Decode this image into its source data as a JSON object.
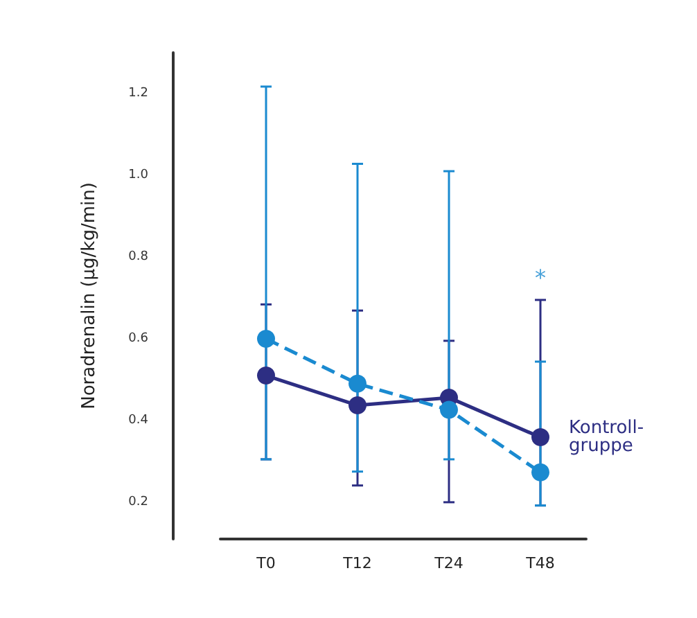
{
  "chart_data": {
    "type": "line",
    "ylabel": "Noradrenalin (µg/kg/min)",
    "categories": [
      "T0",
      "T12",
      "T24",
      "T48"
    ],
    "series": [
      {
        "name": "Kontroll-\ngruppe",
        "color": "#2d2e83",
        "line_style": "solid",
        "values": [
          0.51,
          0.437,
          0.456,
          0.359
        ],
        "errors": [
          [
            0.305,
            0.684
          ],
          [
            0.241,
            0.669
          ],
          [
            0.2,
            0.595
          ],
          [
            0.192,
            0.695
          ]
        ]
      },
      {
        "color": "#1a8ad0",
        "line_style": "dashed",
        "values": [
          0.6,
          0.49,
          0.426,
          0.273
        ],
        "errors": [
          [
            0.305,
            1.217
          ],
          [
            0.275,
            1.028
          ],
          [
            0.305,
            1.01
          ],
          [
            0.192,
            0.544
          ]
        ]
      }
    ],
    "annotations": [
      "*"
    ],
    "ylim": [
      0.11,
      1.3
    ],
    "yticks": [
      {
        "value": 0.2,
        "label": "0.2"
      },
      {
        "value": 0.4,
        "label": "0.4"
      },
      {
        "value": 0.6,
        "label": "0.6"
      },
      {
        "value": 0.8,
        "label": "0.8"
      },
      {
        "value": 1,
        "label": "1.0"
      },
      {
        "value": 1.2,
        "label": "1.2"
      }
    ],
    "marker": "circle",
    "legend": false,
    "grid": false
  }
}
